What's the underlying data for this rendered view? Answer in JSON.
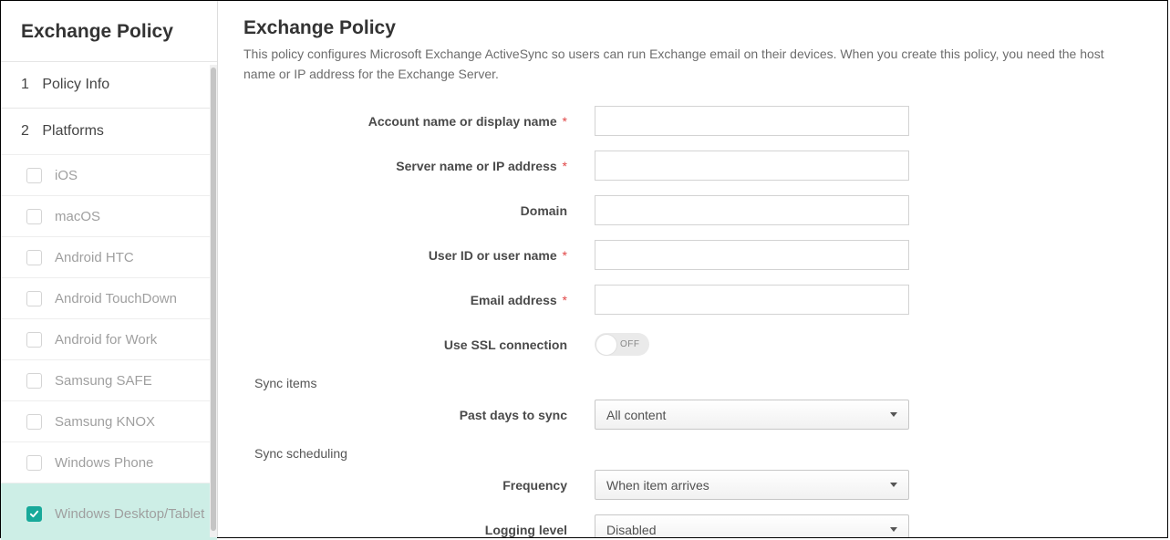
{
  "sidebar": {
    "title": "Exchange Policy",
    "steps": [
      {
        "num": "1",
        "label": "Policy Info"
      },
      {
        "num": "2",
        "label": "Platforms"
      }
    ],
    "platforms": [
      {
        "label": "iOS",
        "checked": false,
        "active": false
      },
      {
        "label": "macOS",
        "checked": false,
        "active": false
      },
      {
        "label": "Android HTC",
        "checked": false,
        "active": false
      },
      {
        "label": "Android TouchDown",
        "checked": false,
        "active": false
      },
      {
        "label": "Android for Work",
        "checked": false,
        "active": false
      },
      {
        "label": "Samsung SAFE",
        "checked": false,
        "active": false
      },
      {
        "label": "Samsung KNOX",
        "checked": false,
        "active": false
      },
      {
        "label": "Windows Phone",
        "checked": false,
        "active": false
      },
      {
        "label": "Windows Desktop/Tablet",
        "checked": true,
        "active": true
      }
    ]
  },
  "main": {
    "title": "Exchange Policy",
    "description": "This policy configures Microsoft Exchange ActiveSync so users can run Exchange email on their devices. When you create this policy, you need the host name or IP address for the Exchange Server."
  },
  "form": {
    "account_name": {
      "label": "Account name or display name",
      "required": true,
      "value": ""
    },
    "server": {
      "label": "Server name or IP address",
      "required": true,
      "value": ""
    },
    "domain": {
      "label": "Domain",
      "required": false,
      "value": ""
    },
    "user_id": {
      "label": "User ID or user name",
      "required": true,
      "value": ""
    },
    "email": {
      "label": "Email address",
      "required": true,
      "value": ""
    },
    "ssl": {
      "label": "Use SSL connection",
      "state": "OFF"
    },
    "section_sync_items": "Sync items",
    "past_days": {
      "label": "Past days to sync",
      "value": "All content"
    },
    "section_sync_sched": "Sync scheduling",
    "frequency": {
      "label": "Frequency",
      "value": "When item arrives"
    },
    "logging": {
      "label": "Logging level",
      "value": "Disabled"
    }
  },
  "style": {
    "accent": "#18a99a",
    "active_bg": "#cdeee6",
    "required_color": "#e04646",
    "text_muted": "#9f9f9f",
    "border": "#d3d3d3"
  }
}
